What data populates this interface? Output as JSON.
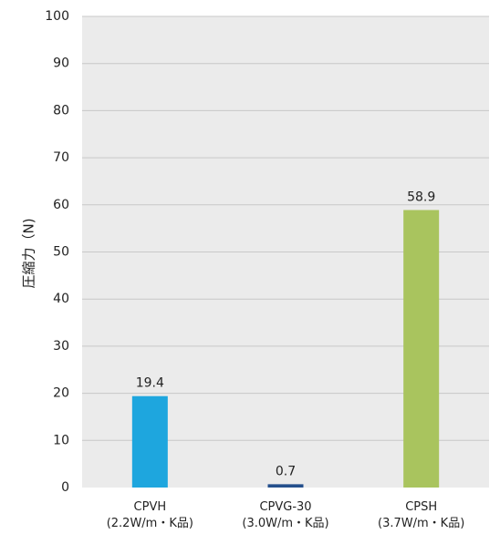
{
  "chart_data": {
    "type": "bar",
    "title": "",
    "xlabel": "",
    "ylabel": "圧縮力（N)",
    "ylim": [
      0,
      100
    ],
    "yticks": [
      0,
      10,
      20,
      30,
      40,
      50,
      60,
      70,
      80,
      90,
      100
    ],
    "grid": true,
    "categories": [
      {
        "name": "CPVH",
        "sub": "(2.2W/m・K品)"
      },
      {
        "name": "CPVG-30",
        "sub": "(3.0W/m・K品)"
      },
      {
        "name": "CPSH",
        "sub": "(3.7W/m・K品)"
      }
    ],
    "values": [
      19.4,
      0.7,
      58.9
    ],
    "value_labels": [
      "19.4",
      "0.7",
      "58.9"
    ],
    "colors": [
      "#1ea6de",
      "#244f8c",
      "#a9c45e"
    ],
    "plot_background": "#ebebeb",
    "grid_color": "#c8c8c8"
  }
}
